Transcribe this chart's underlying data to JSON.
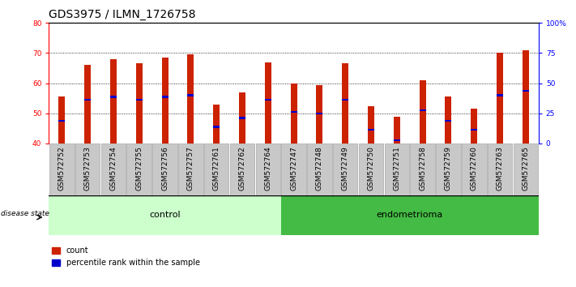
{
  "title": "GDS3975 / ILMN_1726758",
  "samples": [
    "GSM572752",
    "GSM572753",
    "GSM572754",
    "GSM572755",
    "GSM572756",
    "GSM572757",
    "GSM572761",
    "GSM572762",
    "GSM572764",
    "GSM572747",
    "GSM572748",
    "GSM572749",
    "GSM572750",
    "GSM572751",
    "GSM572758",
    "GSM572759",
    "GSM572760",
    "GSM572763",
    "GSM572765"
  ],
  "bar_heights": [
    55.5,
    66.0,
    68.0,
    66.5,
    68.5,
    69.5,
    53.0,
    57.0,
    67.0,
    60.0,
    59.5,
    66.5,
    52.5,
    49.0,
    61.0,
    55.5,
    51.5,
    70.0,
    71.0
  ],
  "blue_positions": [
    47.5,
    54.5,
    55.5,
    54.5,
    55.5,
    56.0,
    45.5,
    48.5,
    54.5,
    50.5,
    50.0,
    54.5,
    44.5,
    41.0,
    51.0,
    47.5,
    44.5,
    56.0,
    57.5
  ],
  "n_control": 9,
  "n_endometrioma": 10,
  "ylim_left": [
    40,
    80
  ],
  "ylim_right": [
    0,
    100
  ],
  "right_ticks": [
    0,
    25,
    50,
    75,
    100
  ],
  "right_tick_labels": [
    "0",
    "25",
    "50",
    "75",
    "100%"
  ],
  "left_ticks": [
    40,
    50,
    60,
    70,
    80
  ],
  "bar_color": "#CC2200",
  "blue_color": "#0000CC",
  "control_bg_light": "#CCFFCC",
  "endometrioma_bg": "#44BB44",
  "gray_tick_bg": "#C8C8C8",
  "title_fontsize": 10,
  "tick_fontsize": 6.5,
  "label_fontsize": 8,
  "bar_width": 0.25
}
